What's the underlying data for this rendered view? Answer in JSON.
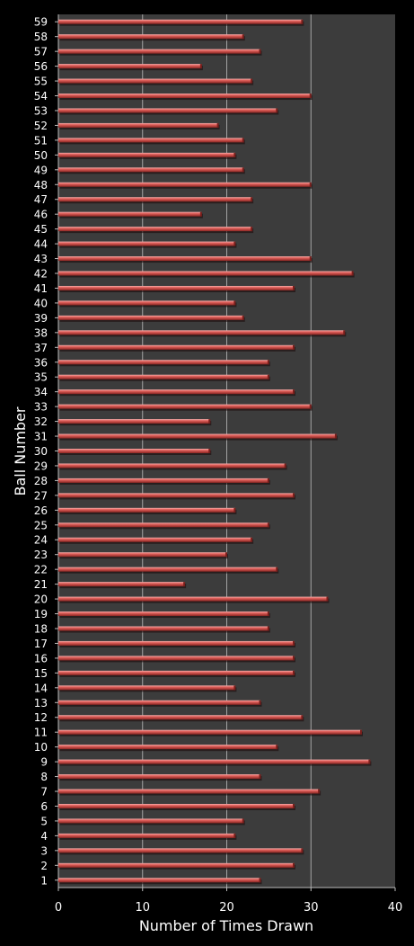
{
  "chart_data": {
    "type": "bar",
    "orientation": "horizontal",
    "title": "",
    "xlabel": "Number of Times Drawn",
    "ylabel": "Ball Number",
    "xlim": [
      0,
      40
    ],
    "x_ticks": [
      "0",
      "10",
      "20",
      "30",
      "40"
    ],
    "grid": "vertical",
    "legend": "none",
    "colors": {
      "background": "#000000",
      "plot_background": "#3c3c3c",
      "bar": "#d9534f",
      "bar_highlight": "#f4a3a0",
      "bar_shadow": "#6e1e1e",
      "gridline": "#bdbdbd",
      "text": "#ffffff"
    },
    "categories": [
      "1",
      "2",
      "3",
      "4",
      "5",
      "6",
      "7",
      "8",
      "9",
      "10",
      "11",
      "12",
      "13",
      "14",
      "15",
      "16",
      "17",
      "18",
      "19",
      "20",
      "21",
      "22",
      "23",
      "24",
      "25",
      "26",
      "27",
      "28",
      "29",
      "30",
      "31",
      "32",
      "33",
      "34",
      "35",
      "36",
      "37",
      "38",
      "39",
      "40",
      "41",
      "42",
      "43",
      "44",
      "45",
      "46",
      "47",
      "48",
      "49",
      "50",
      "51",
      "52",
      "53",
      "54",
      "55",
      "56",
      "57",
      "58",
      "59"
    ],
    "values": [
      24,
      28,
      29,
      21,
      22,
      28,
      31,
      24,
      37,
      26,
      36,
      29,
      24,
      21,
      28,
      28,
      28,
      25,
      25,
      32,
      15,
      26,
      20,
      23,
      25,
      21,
      28,
      25,
      27,
      18,
      33,
      18,
      30,
      28,
      25,
      25,
      28,
      34,
      22,
      21,
      28,
      35,
      30,
      21,
      23,
      17,
      23,
      30,
      22,
      21,
      22,
      19,
      26,
      30,
      23,
      17,
      24,
      22,
      29
    ]
  }
}
